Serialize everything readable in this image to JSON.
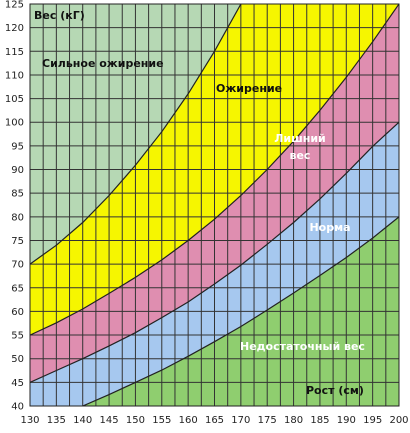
{
  "chart_data": {
    "type": "area",
    "ylabel": "Вес (кГ)",
    "xlabel": "Рост  (см)",
    "xlim": [
      130,
      200
    ],
    "ylim": [
      40,
      125
    ],
    "x_ticks": [
      130,
      135,
      140,
      145,
      150,
      155,
      160,
      165,
      170,
      175,
      180,
      185,
      190,
      195,
      200
    ],
    "y_ticks": [
      40,
      45,
      50,
      55,
      60,
      65,
      70,
      75,
      80,
      85,
      90,
      95,
      100,
      105,
      110,
      115,
      120,
      125
    ],
    "grid": true,
    "x": [
      130,
      135,
      140,
      145,
      150,
      155,
      160,
      165,
      170,
      175,
      180,
      185,
      190,
      195,
      200
    ],
    "boundaries": [
      {
        "from": "Недостаточный вес",
        "to": "Норма",
        "y": [
          36,
          37.8,
          40,
          42.4,
          45,
          47.6,
          50.5,
          53.6,
          56.8,
          60.3,
          63.9,
          67.6,
          71.4,
          75.5,
          80
        ]
      },
      {
        "from": "Норма",
        "to": "Лишний вес",
        "y": [
          45,
          47.5,
          50,
          52.7,
          55.5,
          58.7,
          62,
          65.8,
          69.8,
          74.2,
          78.8,
          83.8,
          89.2,
          94.9,
          100
        ]
      },
      {
        "from": "Лишний вес",
        "to": "Ожирение",
        "y": [
          55,
          57.6,
          60.5,
          63.8,
          67.2,
          70.9,
          75,
          79.5,
          84.5,
          90,
          96,
          102.5,
          109.5,
          117,
          125
        ]
      },
      {
        "from": "Ожирение",
        "to": "Сильное ожирение",
        "y": [
          70,
          74,
          78.8,
          84.5,
          90.9,
          98,
          106,
          115,
          125
        ]
      }
    ],
    "zones": [
      {
        "name": "Сильное ожирение",
        "color": "#b6d8b4",
        "text_color": "#111111"
      },
      {
        "name": "Ожирение",
        "color": "#f6f600",
        "text_color": "#111111"
      },
      {
        "name": "Лишний\nвес",
        "color": "#df8eb0",
        "text_color": "#ffffff"
      },
      {
        "name": "Норма",
        "color": "#a6c8ef",
        "text_color": "#ffffff"
      },
      {
        "name": "Недостаточный вес",
        "color": "#8fce6f",
        "text_color": "#ffffff"
      }
    ]
  }
}
